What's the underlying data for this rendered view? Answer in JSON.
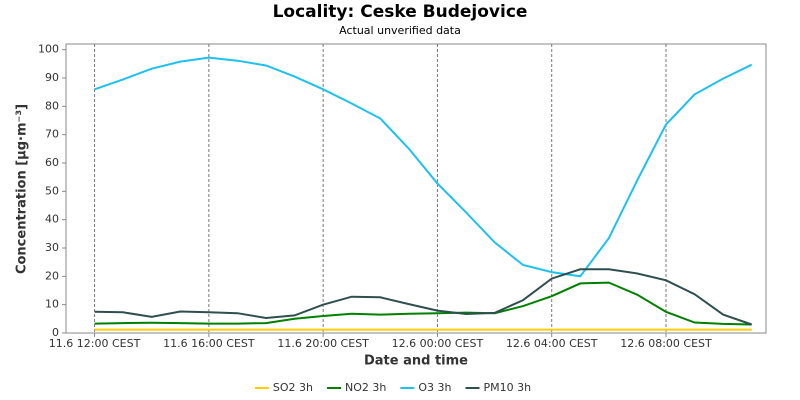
{
  "chart_data": {
    "type": "line",
    "title": "Locality: Ceske Budejovice",
    "subtitle": "Actual unverified data",
    "x_label": "Date and time",
    "y_label": "Concentration [µg·m⁻³]",
    "categories": [
      "11.6 12:00 CEST",
      null,
      null,
      null,
      "11.6 16:00 CEST",
      null,
      null,
      null,
      "11.6 20:00 CEST",
      null,
      null,
      null,
      "12.6 00:00 CEST",
      null,
      null,
      null,
      "12.6 04:00 CEST",
      null,
      null,
      null,
      "12.6 08:00 CEST",
      null,
      null,
      null
    ],
    "series": [
      {
        "name": "SO2 3h",
        "color": "#ffcc00",
        "values": [
          1.2,
          1.2,
          1.2,
          1.2,
          1.2,
          1.2,
          1.2,
          1.2,
          1.2,
          1.2,
          1.2,
          1.2,
          1.2,
          1.2,
          1.2,
          1.2,
          1.2,
          1.2,
          1.2,
          1.2,
          1.2,
          1.2,
          1.2,
          1.2
        ]
      },
      {
        "name": "NO2 3h",
        "color": "#008000",
        "values": [
          3.3,
          3.5,
          3.6,
          3.5,
          3.3,
          3.3,
          3.5,
          5,
          6,
          6.8,
          6.5,
          6.8,
          7,
          7.2,
          7,
          9.5,
          13,
          17.5,
          17.8,
          13.5,
          7.5,
          3.7,
          3.2,
          3
        ]
      },
      {
        "name": "O3 3h",
        "color": "#1ec0ef",
        "values": [
          86,
          89.5,
          93.3,
          95.8,
          97.2,
          96.1,
          94.4,
          90.5,
          86,
          81,
          75.7,
          65,
          52.8,
          42.6,
          32,
          24,
          21.5,
          20,
          33.5,
          54,
          73.6,
          84.2,
          89.8,
          94.7
        ]
      },
      {
        "name": "PM10 3h",
        "color": "#2f4f4f",
        "values": [
          7.5,
          7.3,
          5.7,
          7.6,
          7.3,
          7,
          5.3,
          6.2,
          10,
          12.8,
          12.6,
          10.2,
          7.9,
          6.7,
          7.1,
          11.6,
          19.2,
          22.5,
          22.5,
          21,
          18.6,
          13.7,
          6.5,
          3
        ]
      }
    ],
    "ylim": [
      0,
      102
    ],
    "yticks": [
      0,
      10,
      20,
      30,
      40,
      50,
      60,
      70,
      80,
      90,
      100
    ],
    "grid": "x",
    "legend": "bottom"
  }
}
